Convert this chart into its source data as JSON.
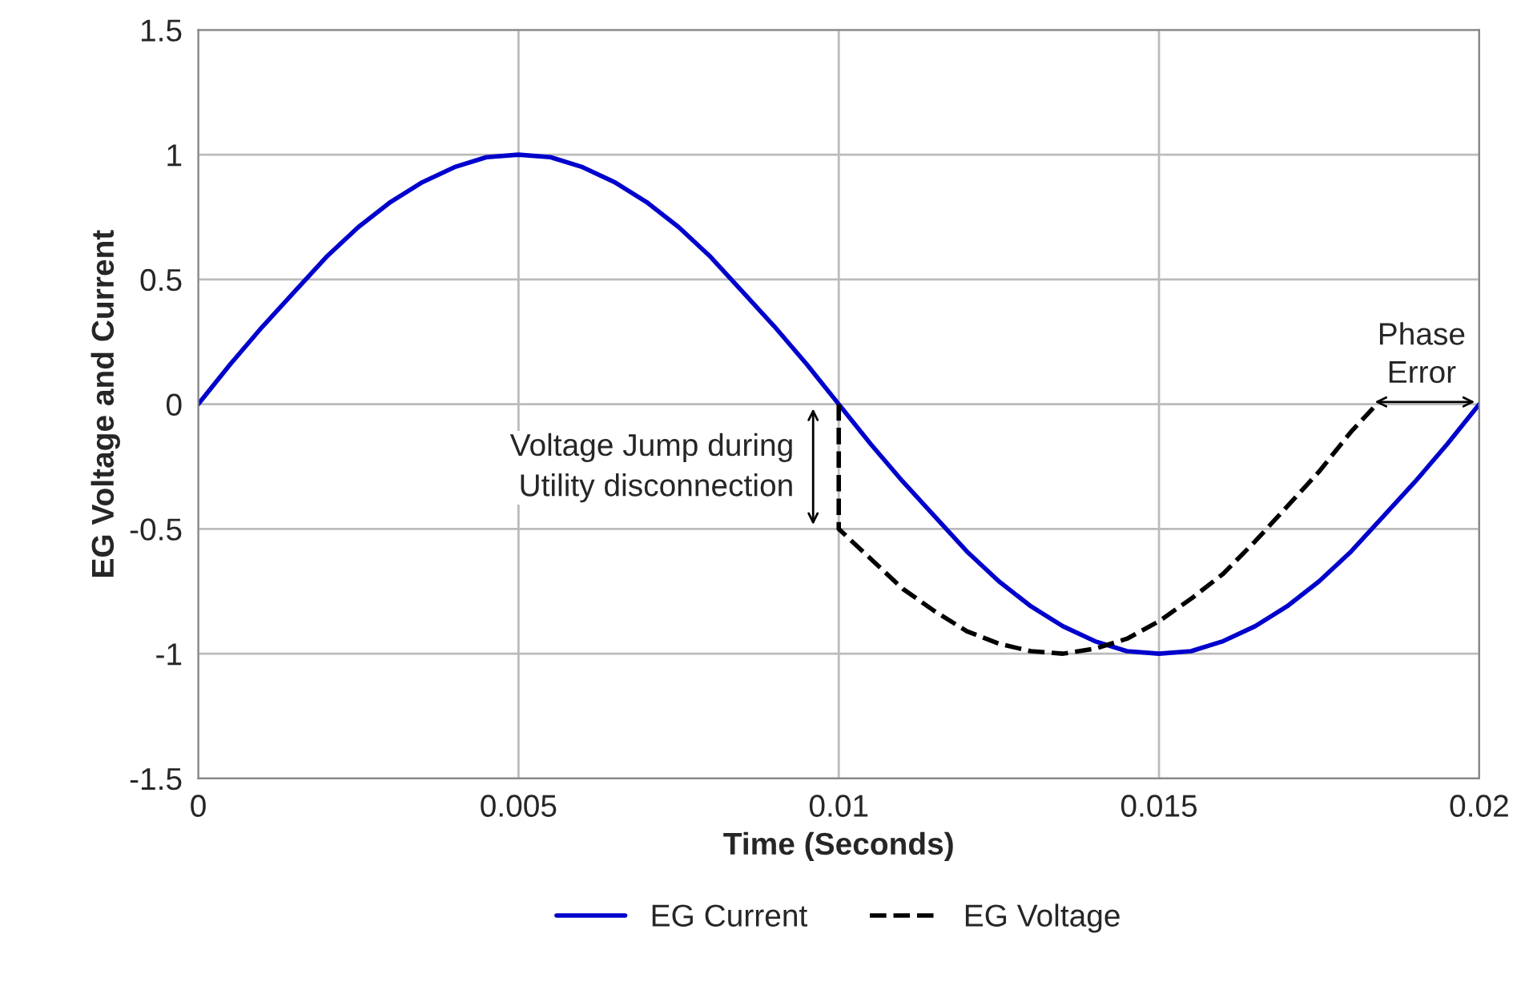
{
  "chart_data": {
    "type": "line",
    "xlabel": "Time (Seconds)",
    "ylabel": "EG Voltage and Current",
    "xlim": [
      0,
      0.02
    ],
    "xticks": [
      0,
      0.005,
      0.01,
      0.015,
      0.02
    ],
    "ylim": [
      -1.5,
      1.5
    ],
    "yticks": [
      -1.5,
      -1,
      -0.5,
      0,
      0.5,
      1,
      1.5
    ],
    "grid": true,
    "legend": "bottom",
    "line_style": "solid",
    "marker": "none",
    "series": [
      {
        "name": "EG Current",
        "color": "#0000cc",
        "x": [
          0,
          0.0005,
          0.001,
          0.0015,
          0.002,
          0.0025,
          0.003,
          0.0035,
          0.004,
          0.0045,
          0.005,
          0.0055,
          0.006,
          0.0065,
          0.007,
          0.0075,
          0.008,
          0.0085,
          0.009,
          0.0095,
          0.01,
          0.0105,
          0.011,
          0.0115,
          0.012,
          0.0125,
          0.013,
          0.0135,
          0.014,
          0.0145,
          0.015,
          0.0155,
          0.016,
          0.0165,
          0.017,
          0.0175,
          0.018,
          0.0185,
          0.019,
          0.0195,
          0.02
        ],
        "values": [
          0,
          0.16,
          0.31,
          0.45,
          0.59,
          0.71,
          0.81,
          0.89,
          0.95,
          0.99,
          1,
          0.99,
          0.95,
          0.89,
          0.81,
          0.71,
          0.59,
          0.45,
          0.31,
          0.16,
          0,
          -0.16,
          -0.31,
          -0.45,
          -0.59,
          -0.71,
          -0.81,
          -0.89,
          -0.95,
          -0.99,
          -1,
          -0.99,
          -0.95,
          -0.89,
          -0.81,
          -0.71,
          -0.59,
          -0.45,
          -0.31,
          -0.16,
          0
        ]
      },
      {
        "name": "EG Voltage",
        "color": "#000000",
        "line_style": "dashed",
        "x": [
          0.01,
          0.01,
          0.0105,
          0.011,
          0.0115,
          0.012,
          0.0125,
          0.013,
          0.0135,
          0.014,
          0.0145,
          0.015,
          0.0155,
          0.016,
          0.0165,
          0.017,
          0.0175,
          0.018,
          0.0184
        ],
        "values": [
          0,
          -0.5,
          -0.62,
          -0.74,
          -0.83,
          -0.91,
          -0.96,
          -0.99,
          -1,
          -0.98,
          -0.94,
          -0.87,
          -0.78,
          -0.68,
          -0.55,
          -0.41,
          -0.27,
          -0.11,
          0
        ]
      }
    ],
    "annotations": [
      "Voltage Jump during\nUtility disconnection",
      "Phase Error"
    ]
  }
}
